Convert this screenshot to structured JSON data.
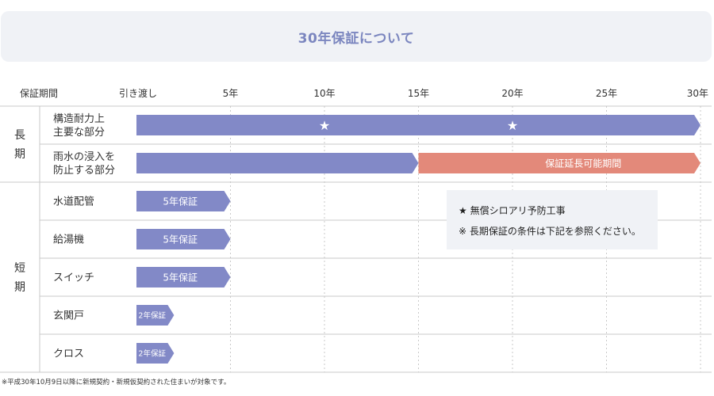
{
  "title": "30年保証について",
  "footnote": "※平成30年10月9日以降に新規契約・新規仮契約された住まいが対象です。",
  "colors": {
    "bar": "#8289c7",
    "extension": "#e3897a",
    "grid": "#c9c9c9",
    "title_bg": "#f0f2f6",
    "legend_bg": "#f0f2f6"
  },
  "chart_data": {
    "type": "bar",
    "header_label": "保証期間",
    "x_ticks": [
      {
        "value": 0,
        "label": "引き渡し"
      },
      {
        "value": 5,
        "label": "5年"
      },
      {
        "value": 10,
        "label": "10年"
      },
      {
        "value": 15,
        "label": "15年"
      },
      {
        "value": 20,
        "label": "20年"
      },
      {
        "value": 25,
        "label": "25年"
      },
      {
        "value": 30,
        "label": "30年"
      }
    ],
    "xlim": [
      0,
      30
    ],
    "groups": [
      {
        "label": "長期",
        "rows": [
          0,
          1
        ]
      },
      {
        "label": "短期",
        "rows": [
          2,
          3,
          4,
          5,
          6
        ]
      }
    ],
    "rows": [
      {
        "label": [
          "構造耐力上",
          "主要な部分"
        ],
        "segments": [
          {
            "start": 0,
            "end": 30,
            "kind": "warranty",
            "label": ""
          }
        ],
        "stars": [
          10,
          20
        ]
      },
      {
        "label": [
          "雨水の浸入を",
          "防止する部分"
        ],
        "segments": [
          {
            "start": 0,
            "end": 15,
            "kind": "warranty",
            "label": ""
          },
          {
            "start": 15,
            "end": 30,
            "kind": "extension",
            "label": "保証延長可能期間"
          }
        ],
        "stars": []
      },
      {
        "label": [
          "水道配管"
        ],
        "segments": [
          {
            "start": 0,
            "end": 5,
            "kind": "warranty",
            "label": "5年保証"
          }
        ],
        "stars": []
      },
      {
        "label": [
          "給湯機"
        ],
        "segments": [
          {
            "start": 0,
            "end": 5,
            "kind": "warranty",
            "label": "5年保証"
          }
        ],
        "stars": []
      },
      {
        "label": [
          "スイッチ"
        ],
        "segments": [
          {
            "start": 0,
            "end": 5,
            "kind": "warranty",
            "label": "5年保証"
          }
        ],
        "stars": []
      },
      {
        "label": [
          "玄関戸"
        ],
        "segments": [
          {
            "start": 0,
            "end": 2,
            "kind": "warranty",
            "label": "2年保証"
          }
        ],
        "stars": []
      },
      {
        "label": [
          "クロス"
        ],
        "segments": [
          {
            "start": 0,
            "end": 2,
            "kind": "warranty",
            "label": "2年保証"
          }
        ],
        "stars": []
      }
    ],
    "legend": [
      "★ 無償シロアリ予防工事",
      "※ 長期保証の条件は下記を参照ください。"
    ]
  }
}
